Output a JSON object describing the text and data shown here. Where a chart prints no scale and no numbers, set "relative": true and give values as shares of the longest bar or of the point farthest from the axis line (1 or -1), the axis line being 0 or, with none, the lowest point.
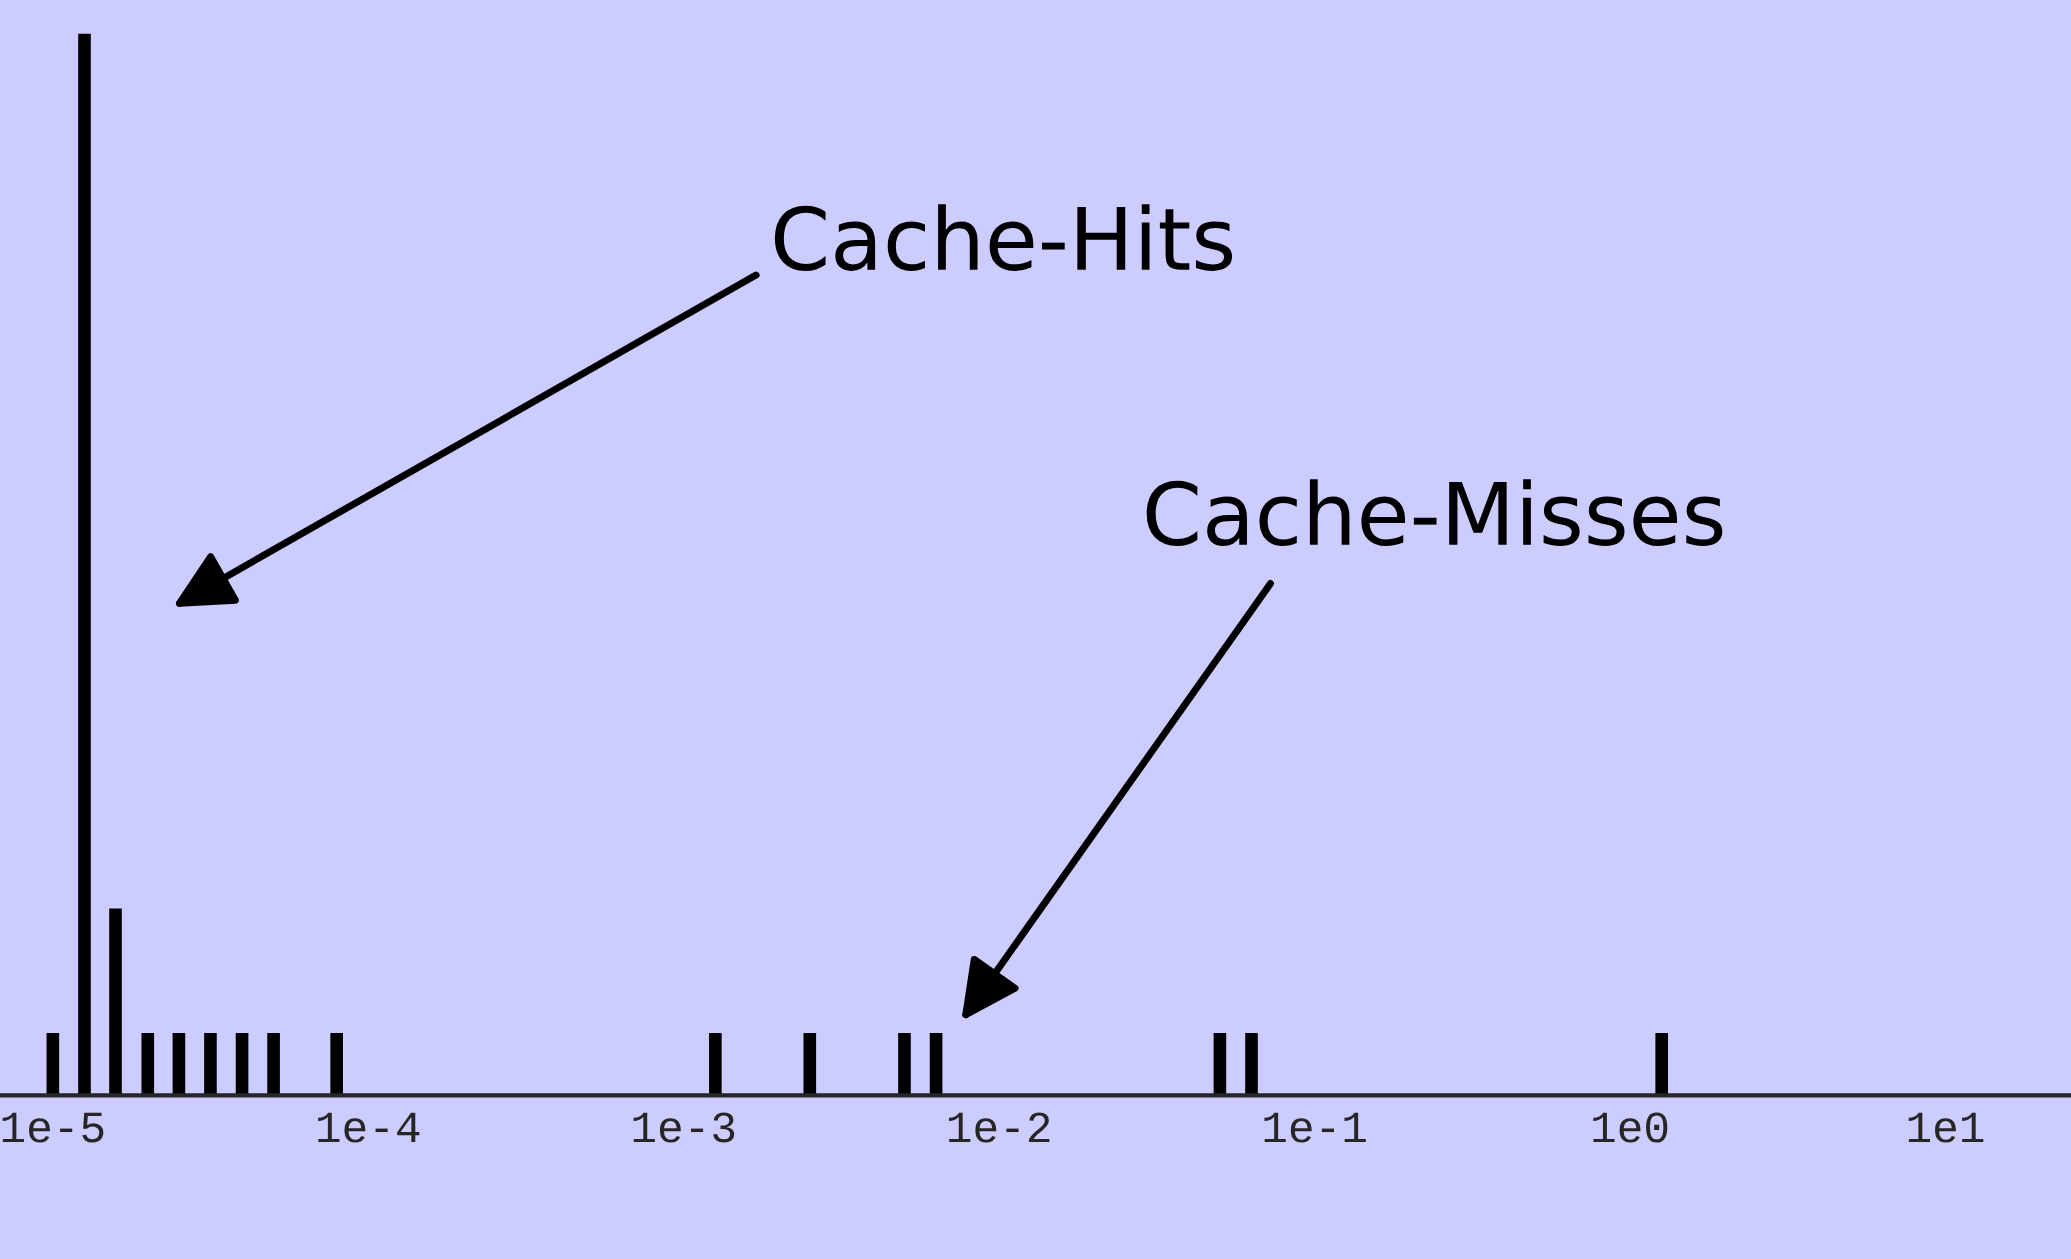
{
  "chart_data": {
    "type": "bar",
    "relative": true,
    "log": "x",
    "xlim": [
      6.8e-06,
      25
    ],
    "xticks": [
      {
        "value": 1e-05,
        "label": "1e-5"
      },
      {
        "value": 0.0001,
        "label": "1e-4"
      },
      {
        "value": 0.001,
        "label": "1e-3"
      },
      {
        "value": 0.01,
        "label": "1e-2"
      },
      {
        "value": 0.1,
        "label": "1e-1"
      },
      {
        "value": 1,
        "label": "1e0"
      },
      {
        "value": 10,
        "label": "1e1"
      }
    ],
    "series": [
      {
        "color": "#000000",
        "x": [
          1e-05,
          1.26e-05,
          1.58e-05,
          2e-05,
          2.51e-05,
          3.16e-05,
          3.98e-05,
          5.01e-05,
          7.94e-05
        ],
        "values": [
          0.0588,
          1,
          0.176,
          0.0588,
          0.0588,
          0.0588,
          0.0588,
          0.0588,
          0.0588
        ]
      },
      {
        "color": "#000000",
        "x": [
          0.00126,
          0.00251,
          0.00501,
          0.00631,
          0.0501,
          0.0631,
          1.26
        ],
        "values": [
          0.0588,
          0.0588,
          0.0588,
          0.0588,
          0.0588,
          0.0588,
          0.0588
        ]
      }
    ],
    "annotations": [
      "Cache-Hits",
      "Cache-Misses"
    ],
    "grid": false,
    "legend": false
  }
}
